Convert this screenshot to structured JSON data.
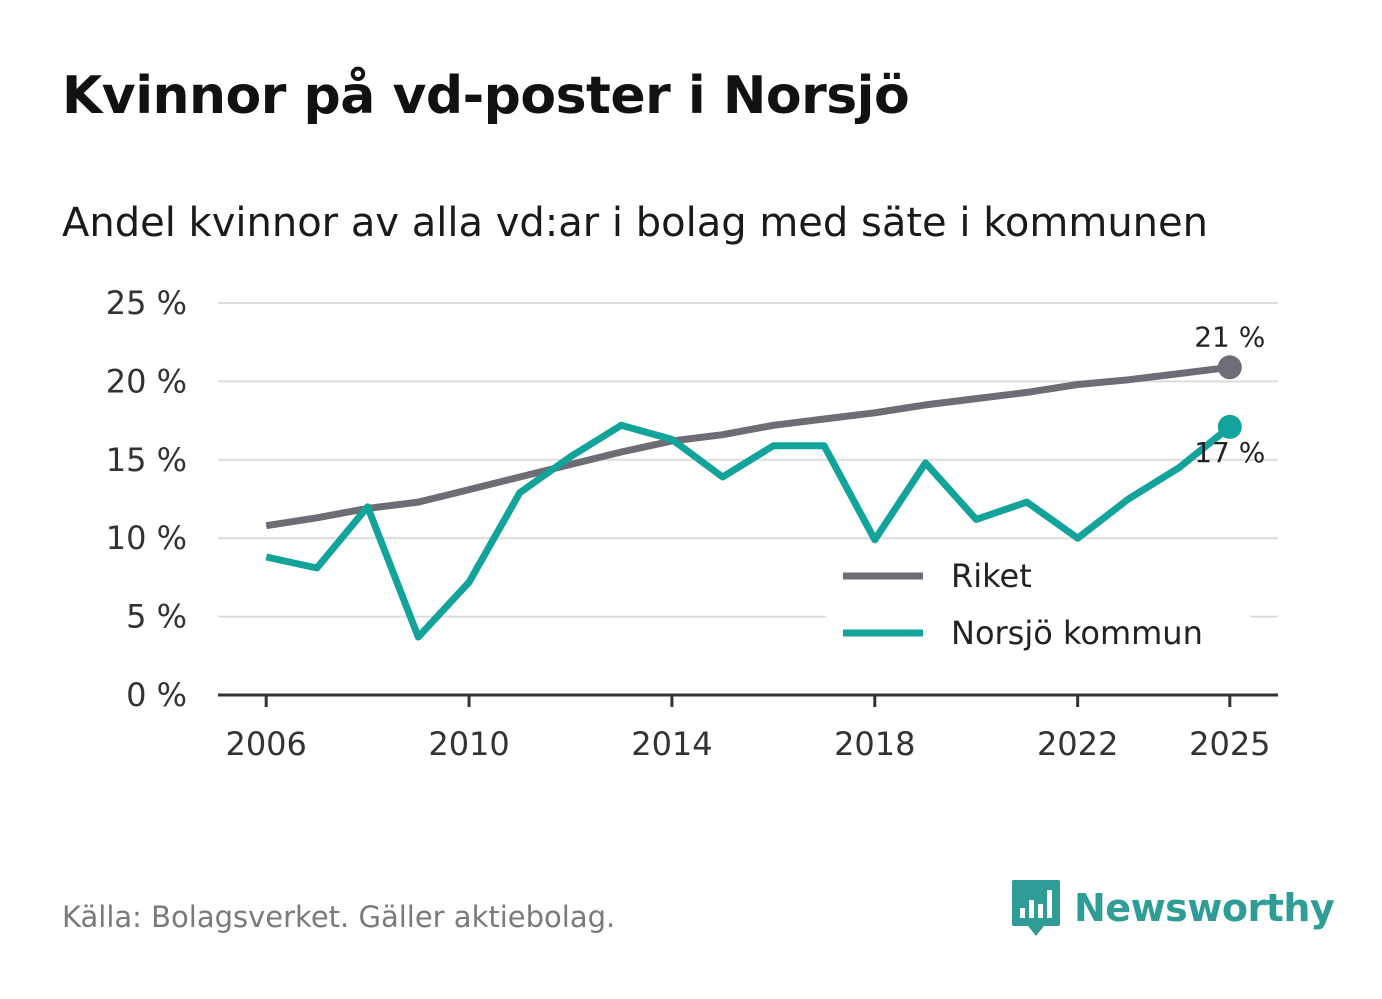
{
  "title": "Kvinnor på vd-poster i Norsjö",
  "subtitle": "Andel kvinnor av alla vd:ar i bolag med säte i kommunen",
  "source": "Källa: Bolagsverket. Gäller aktiebolag.",
  "brand": {
    "name": "Newsworthy",
    "icon": "newsworthy-logo-icon",
    "color": "#2f9d95"
  },
  "chart_data": {
    "type": "line",
    "title": "Kvinnor på vd-poster i Norsjö",
    "xlabel": "",
    "ylabel": "",
    "x": [
      2006,
      2007,
      2008,
      2009,
      2010,
      2011,
      2012,
      2013,
      2014,
      2015,
      2016,
      2017,
      2018,
      2019,
      2020,
      2021,
      2022,
      2023,
      2024,
      2025
    ],
    "xlim": [
      2005.05,
      2025.95
    ],
    "ylim": [
      0,
      25
    ],
    "x_ticks": [
      {
        "value": 2006,
        "label": "2006"
      },
      {
        "value": 2010,
        "label": "2010"
      },
      {
        "value": 2014,
        "label": "2014"
      },
      {
        "value": 2018,
        "label": "2018"
      },
      {
        "value": 2022,
        "label": "2022"
      },
      {
        "value": 2025,
        "label": "2025"
      }
    ],
    "y_ticks": [
      {
        "value": 0,
        "label": "0 %"
      },
      {
        "value": 5,
        "label": "5 %"
      },
      {
        "value": 10,
        "label": "10 %"
      },
      {
        "value": 15,
        "label": "15 %"
      },
      {
        "value": 20,
        "label": "20 %"
      },
      {
        "value": 25,
        "label": "25 %"
      }
    ],
    "grid": true,
    "legend_position": "bottom-right",
    "series": [
      {
        "name": "Riket",
        "color": "#6e6d75",
        "values": [
          10.8,
          11.3,
          11.9,
          12.3,
          13.1,
          13.9,
          14.7,
          15.5,
          16.2,
          16.6,
          17.2,
          17.6,
          18.0,
          18.5,
          18.9,
          19.3,
          19.8,
          20.1,
          20.5,
          20.9
        ],
        "end_label": "21 %"
      },
      {
        "name": "Norsjö kommun",
        "color": "#12a39b",
        "values": [
          8.8,
          8.1,
          12.0,
          3.7,
          7.2,
          12.9,
          15.2,
          17.2,
          16.3,
          13.9,
          15.9,
          15.9,
          9.9,
          14.8,
          11.2,
          12.3,
          10.0,
          12.5,
          14.5,
          17.1
        ],
        "end_label": "17 %"
      }
    ]
  }
}
